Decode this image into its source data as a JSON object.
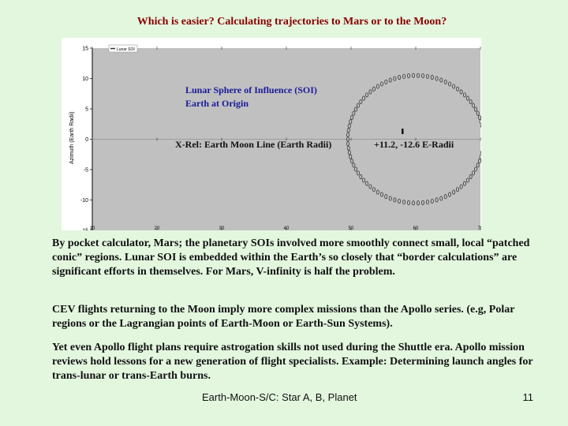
{
  "slide": {
    "title": "Which is easier?  Calculating trajectories to Mars or to the Moon?",
    "paragraphs": [
      " By pocket calculator, Mars; the planetary SOIs involved more smoothly connect small, local “patched conic” regions.  Lunar SOI is embedded within the Earth’s so closely that “border calculations” are significant efforts in themselves.  For Mars, V-infinity is half the problem.",
      "CEV flights returning to the Moon imply more complex missions than the Apollo series. (e.g, Polar regions or the Lagrangian  points of  Earth-Moon or Earth-Sun Systems).",
      "Yet even Apollo flight plans require astrogation skills not used during the Shuttle era.  Apollo mission reviews hold lessons for a new generation of flight specialists.  Example: Determining launch angles for trans-lunar or trans-Earth burns."
    ],
    "footer_text": "Earth-Moon-S/C: Star A, B, Planet",
    "page_number": "11"
  },
  "chart_data": {
    "type": "scatter",
    "ylabel": "Azimuth (Earth Radii)",
    "ylim": [
      -15,
      15
    ],
    "yticks": [
      15,
      10,
      5,
      0,
      -5,
      -10,
      -15
    ],
    "xticks": [
      "10",
      "20",
      "30",
      "40",
      "50",
      "60",
      "70"
    ],
    "legend": "Lunar SOI",
    "annotations": {
      "soi_line1": "Lunar Sphere of Influence (SOI)",
      "soi_line2": " Earth at Origin",
      "xrel": "X-Rel: Earth Moon Line (Earth Radii)",
      "coords": "+11.2,  -12.6 E-Radii"
    },
    "circle": {
      "center_x": 60,
      "center_y": 0,
      "radius": 10.5
    },
    "colors": {
      "plot_bg": "#c0c0c0",
      "marker": "#333333"
    }
  }
}
